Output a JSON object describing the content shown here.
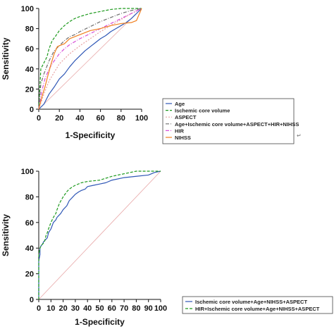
{
  "chart_data": [
    {
      "type": "line",
      "title": "",
      "xlabel": "1-Specificity",
      "ylabel": "Sensitivity",
      "xlim": [
        0,
        100
      ],
      "ylim": [
        0,
        100
      ],
      "xticks": [
        0,
        20,
        40,
        60,
        80,
        100
      ],
      "yticks": [
        0,
        20,
        40,
        60,
        80,
        100
      ],
      "grid": false,
      "legend_position": "bottom-right",
      "reference_line": {
        "x": [
          0,
          100
        ],
        "y": [
          0,
          100
        ],
        "color": "#e8a8a8"
      },
      "series": [
        {
          "name": "Age",
          "color": "#2f57b6",
          "dash": "solid",
          "x": [
            0,
            5,
            10,
            15,
            20,
            25,
            30,
            35,
            40,
            45,
            50,
            55,
            60,
            65,
            70,
            75,
            80,
            85,
            90,
            95,
            100
          ],
          "y": [
            0,
            5,
            15,
            22,
            30,
            35,
            42,
            48,
            53,
            58,
            62,
            66,
            70,
            73,
            77,
            80,
            83,
            86,
            90,
            95,
            100
          ]
        },
        {
          "name": "Ischemic core volume",
          "color": "#1e9a1e",
          "dash": "4 2",
          "x": [
            0,
            2,
            5,
            8,
            10,
            13,
            16,
            20,
            25,
            30,
            35,
            40,
            50,
            60,
            70,
            80,
            100
          ],
          "y": [
            0,
            40,
            46,
            52,
            60,
            68,
            72,
            78,
            83,
            87,
            90,
            92,
            95,
            97,
            99,
            100,
            100
          ]
        },
        {
          "name": "ASPECT",
          "color": "#e8a0a0",
          "dash": "2 2",
          "x": [
            0,
            5,
            10,
            20,
            30,
            40,
            50,
            60,
            70,
            80,
            90,
            100
          ],
          "y": [
            0,
            15,
            28,
            45,
            55,
            63,
            70,
            77,
            83,
            89,
            95,
            100
          ]
        },
        {
          "name": "Age+Ischemic core volume+ASPECT+HIR+NIHSS",
          "color": "#6d6d6d",
          "dash": "5 2 1 2",
          "x": [
            0,
            2,
            5,
            10,
            15,
            20,
            25,
            30,
            35,
            40,
            50,
            60,
            70,
            80,
            90,
            100
          ],
          "y": [
            0,
            25,
            35,
            48,
            58,
            63,
            68,
            72,
            74,
            77,
            82,
            87,
            91,
            95,
            98,
            100
          ]
        },
        {
          "name": "HIR",
          "color": "#d84fd8",
          "dash": "5 2 1 2",
          "x": [
            0,
            3,
            6,
            10,
            15,
            20,
            25,
            30,
            40,
            50,
            60,
            70,
            80,
            90,
            100
          ],
          "y": [
            0,
            18,
            30,
            40,
            48,
            55,
            60,
            64,
            70,
            75,
            80,
            85,
            90,
            95,
            100
          ]
        },
        {
          "name": "NIHSS",
          "color": "#f07f1f",
          "dash": "solid",
          "x": [
            0,
            3,
            6,
            8,
            12,
            15,
            18,
            20,
            25,
            30,
            35,
            40,
            45,
            50,
            60,
            70,
            80,
            90,
            95,
            100
          ],
          "y": [
            0,
            12,
            22,
            30,
            45,
            55,
            62,
            63,
            65,
            70,
            72,
            74,
            76,
            78,
            80,
            83,
            85,
            86,
            88,
            100
          ]
        }
      ]
    },
    {
      "type": "line",
      "title": "",
      "xlabel": "1-Specificity",
      "ylabel": "Sensitivity",
      "xlim": [
        0,
        100
      ],
      "ylim": [
        0,
        100
      ],
      "xticks": [
        0,
        10,
        20,
        30,
        40,
        50,
        60,
        70,
        80,
        90,
        100
      ],
      "yticks": [
        0,
        20,
        40,
        60,
        80,
        100
      ],
      "grid": false,
      "legend_position": "bottom-right",
      "reference_line": {
        "x": [
          0,
          100
        ],
        "y": [
          0,
          100
        ],
        "color": "#e8a8a8"
      },
      "series": [
        {
          "name": "Ischemic core volume+Age+NIHSS+ASPECT",
          "color": "#2f57b6",
          "dash": "solid",
          "x": [
            0,
            0,
            1,
            1,
            2,
            3,
            4,
            5,
            7,
            8,
            10,
            12,
            14,
            15,
            16,
            18,
            20,
            23,
            25,
            28,
            30,
            33,
            35,
            38,
            40,
            45,
            50,
            55,
            60,
            70,
            80,
            90,
            95,
            100
          ],
          "y": [
            0,
            30,
            35,
            40,
            42,
            43,
            45,
            46,
            48,
            52,
            55,
            60,
            62,
            64,
            65,
            67,
            70,
            73,
            77,
            80,
            82,
            84,
            85,
            86,
            88,
            89,
            90,
            91,
            93,
            95,
            96,
            97,
            99,
            100
          ]
        },
        {
          "name": "HIR+Ischemic core volume+Age+NIHSS+ASPECT",
          "color": "#1e9a1e",
          "dash": "4 2",
          "x": [
            0,
            0,
            1,
            2,
            3,
            4,
            5,
            6,
            7,
            8,
            10,
            12,
            14,
            15,
            17,
            20,
            23,
            25,
            28,
            30,
            35,
            40,
            50,
            60,
            70,
            80,
            90,
            100
          ],
          "y": [
            0,
            35,
            40,
            42,
            43,
            44,
            46,
            50,
            52,
            55,
            60,
            64,
            67,
            70,
            75,
            80,
            84,
            86,
            88,
            89,
            91,
            92,
            93,
            96,
            98,
            100,
            100,
            100
          ]
        }
      ]
    }
  ],
  "marks": {
    "return_glyph": "↵"
  }
}
